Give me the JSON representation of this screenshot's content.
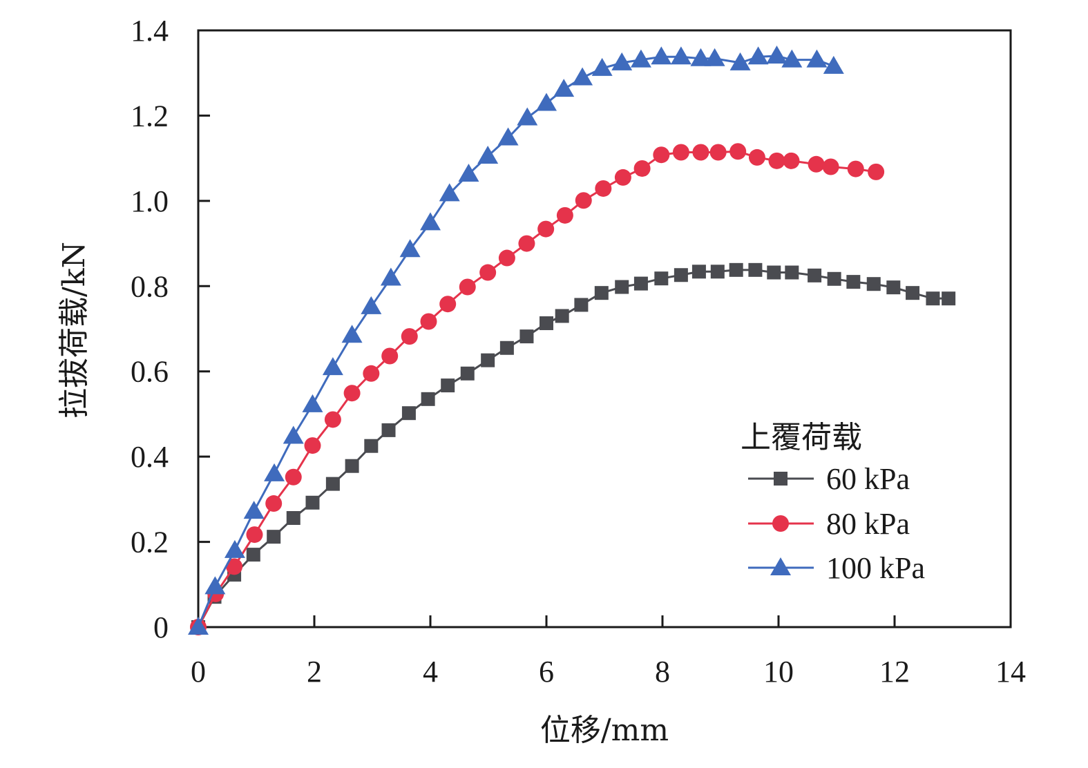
{
  "chart_data": {
    "type": "line",
    "title": "",
    "xlabel": "位移/mm",
    "ylabel": "拉拔荷载/kN",
    "xlim": [
      0,
      14
    ],
    "ylim": [
      0,
      1.4
    ],
    "xticks": [
      0,
      2,
      4,
      6,
      8,
      10,
      12,
      14
    ],
    "yticks": [
      0,
      0.2,
      0.4,
      0.6,
      0.8,
      1.0,
      1.2,
      1.4
    ],
    "xtick_labels": [
      "0",
      "2",
      "4",
      "6",
      "8",
      "10",
      "12",
      "14"
    ],
    "ytick_labels": [
      "0",
      "0.2",
      "0.4",
      "0.6",
      "0.8",
      "1.0",
      "1.2",
      "1.4"
    ],
    "grid": false,
    "legend": {
      "title": "上覆荷载",
      "position": "right"
    },
    "series": [
      {
        "name": "60 kPa",
        "color": "#4a4b50",
        "marker": "square",
        "x": [
          0,
          0.28,
          0.62,
          0.95,
          1.3,
          1.64,
          1.97,
          2.32,
          2.65,
          2.98,
          3.28,
          3.63,
          3.96,
          4.3,
          4.64,
          4.99,
          5.32,
          5.66,
          6.0,
          6.27,
          6.6,
          6.95,
          7.3,
          7.63,
          7.98,
          8.32,
          8.63,
          8.95,
          9.27,
          9.6,
          9.92,
          10.23,
          10.62,
          10.96,
          11.29,
          11.64,
          11.98,
          12.31,
          12.66,
          12.93
        ],
        "y": [
          0,
          0.071,
          0.123,
          0.17,
          0.212,
          0.256,
          0.292,
          0.336,
          0.378,
          0.425,
          0.462,
          0.502,
          0.535,
          0.567,
          0.595,
          0.626,
          0.655,
          0.682,
          0.713,
          0.73,
          0.756,
          0.784,
          0.798,
          0.806,
          0.818,
          0.826,
          0.834,
          0.834,
          0.838,
          0.838,
          0.832,
          0.832,
          0.825,
          0.817,
          0.81,
          0.805,
          0.797,
          0.784,
          0.771,
          0.771
        ]
      },
      {
        "name": "80 kPa",
        "color": "#e5334b",
        "marker": "circle",
        "x": [
          0,
          0.3,
          0.62,
          0.97,
          1.3,
          1.64,
          1.97,
          2.32,
          2.65,
          2.98,
          3.3,
          3.64,
          3.97,
          4.3,
          4.64,
          4.99,
          5.32,
          5.66,
          5.99,
          6.32,
          6.64,
          6.98,
          7.32,
          7.65,
          7.98,
          8.32,
          8.66,
          8.96,
          9.3,
          9.63,
          9.97,
          10.22,
          10.65,
          10.9,
          11.33,
          11.68
        ],
        "y": [
          0,
          0.078,
          0.142,
          0.217,
          0.29,
          0.352,
          0.426,
          0.487,
          0.549,
          0.595,
          0.636,
          0.682,
          0.717,
          0.758,
          0.798,
          0.832,
          0.866,
          0.9,
          0.934,
          0.966,
          1.001,
          1.029,
          1.055,
          1.076,
          1.108,
          1.114,
          1.114,
          1.114,
          1.116,
          1.102,
          1.094,
          1.094,
          1.086,
          1.08,
          1.075,
          1.068
        ]
      },
      {
        "name": "100 kPa",
        "color": "#3f6bbd",
        "marker": "triangle",
        "x": [
          0,
          0.29,
          0.63,
          0.96,
          1.31,
          1.64,
          1.97,
          2.32,
          2.65,
          2.98,
          3.32,
          3.65,
          4.0,
          4.33,
          4.66,
          4.99,
          5.34,
          5.67,
          6.0,
          6.3,
          6.62,
          6.96,
          7.3,
          7.63,
          7.98,
          8.32,
          8.66,
          8.9,
          9.34,
          9.65,
          9.97,
          10.23,
          10.66,
          10.95
        ],
        "y": [
          0,
          0.095,
          0.18,
          0.272,
          0.36,
          0.448,
          0.522,
          0.609,
          0.685,
          0.752,
          0.819,
          0.886,
          0.949,
          1.017,
          1.063,
          1.105,
          1.148,
          1.195,
          1.229,
          1.262,
          1.289,
          1.311,
          1.324,
          1.331,
          1.338,
          1.338,
          1.334,
          1.334,
          1.324,
          1.338,
          1.34,
          1.331,
          1.331,
          1.316
        ]
      }
    ]
  }
}
